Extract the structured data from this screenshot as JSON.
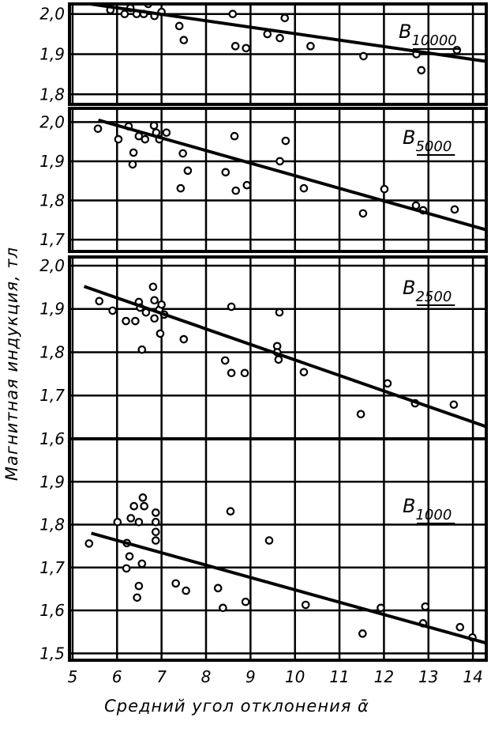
{
  "xlabel": "Средний угол отклонения ᾱ",
  "ylabel": "Магнитная индукция, тл",
  "chart_data": [
    {
      "type": "scatter",
      "label": "B",
      "label_sub": "10000",
      "xlim": [
        4.93,
        14.3
      ],
      "xticks": [
        5,
        6,
        7,
        8,
        9,
        10,
        11,
        12,
        13,
        14
      ],
      "ylim": [
        1.775,
        2.025
      ],
      "yticks": [
        {
          "value": 1.8,
          "label": "1,8"
        },
        {
          "value": 1.9,
          "label": "1,9"
        },
        {
          "value": 2.0,
          "label": "2,0"
        }
      ],
      "grid": true,
      "series": [
        {
          "color": "#000000",
          "x": [
            5.85,
            6.17,
            6.3,
            6.44,
            6.6,
            6.7,
            6.84,
            7.0,
            7.4,
            7.5,
            8.6,
            8.66,
            8.9,
            9.38,
            9.66,
            9.77,
            10.35,
            11.54,
            12.73,
            12.84,
            13.64
          ],
          "values": [
            2.01,
            2.0,
            2.015,
            2.0,
            2.0,
            2.025,
            1.995,
            2.005,
            1.97,
            1.935,
            2.0,
            1.92,
            1.915,
            1.95,
            1.94,
            1.99,
            1.92,
            1.895,
            1.9,
            1.86,
            1.91
          ]
        },
        {
          "type": "line",
          "color": "#000000",
          "x": [
            5.4,
            14.3
          ],
          "values": [
            2.025,
            1.882
          ]
        }
      ]
    },
    {
      "type": "scatter",
      "label": "B",
      "label_sub": "5000",
      "xlim": [
        4.93,
        14.3
      ],
      "xticks": [
        5,
        6,
        7,
        8,
        9,
        10,
        11,
        12,
        13,
        14
      ],
      "ylim": [
        1.67,
        2.035
      ],
      "yticks": [
        {
          "value": 1.7,
          "label": "1,7"
        },
        {
          "value": 1.8,
          "label": "1,8"
        },
        {
          "value": 1.9,
          "label": "1,9"
        },
        {
          "value": 2.0,
          "label": "2,0"
        }
      ],
      "grid": true,
      "series": [
        {
          "color": "#000000",
          "x": [
            5.57,
            6.03,
            6.26,
            6.37,
            6.35,
            6.49,
            6.63,
            6.83,
            6.88,
            6.95,
            7.11,
            7.48,
            7.59,
            7.43,
            8.44,
            8.64,
            8.67,
            8.92,
            9.66,
            9.79,
            10.2,
            11.53,
            12.01,
            12.72,
            12.88,
            13.59
          ],
          "values": [
            1.983,
            1.956,
            1.989,
            1.922,
            1.892,
            1.964,
            1.956,
            1.991,
            1.973,
            1.956,
            1.973,
            1.92,
            1.876,
            1.831,
            1.872,
            1.964,
            1.825,
            1.839,
            1.9,
            1.952,
            1.831,
            1.767,
            1.829,
            1.787,
            1.775,
            1.777
          ]
        },
        {
          "type": "line",
          "color": "#000000",
          "x": [
            5.58,
            14.3
          ],
          "values": [
            2.005,
            1.725
          ]
        }
      ]
    },
    {
      "type": "scatter",
      "label": "B",
      "label_sub": "2500",
      "xlim": [
        4.93,
        14.3
      ],
      "xticks": [
        5,
        6,
        7,
        8,
        9,
        10,
        11,
        12,
        13,
        14
      ],
      "ylim": [
        1.6,
        2.02
      ],
      "yticks": [
        {
          "value": 1.6,
          "label": "1,6"
        },
        {
          "value": 1.7,
          "label": "1,7"
        },
        {
          "value": 1.8,
          "label": "1,8"
        },
        {
          "value": 1.9,
          "label": "1,9"
        },
        {
          "value": 2.0,
          "label": "2,0"
        }
      ],
      "grid": true,
      "series": [
        {
          "color": "#000000",
          "x": [
            5.6,
            5.9,
            6.2,
            6.41,
            6.49,
            6.52,
            6.65,
            6.56,
            6.81,
            6.84,
            6.84,
            6.95,
            7.0,
            7.06,
            6.97,
            7.5,
            8.43,
            8.57,
            8.87,
            8.57,
            9.65,
            9.6,
            9.6,
            9.63,
            10.2,
            11.48,
            12.08,
            12.7,
            13.57
          ],
          "values": [
            1.918,
            1.896,
            1.872,
            1.872,
            1.916,
            1.903,
            1.892,
            1.806,
            1.951,
            1.92,
            1.878,
            1.898,
            1.91,
            1.887,
            1.843,
            1.83,
            1.781,
            1.752,
            1.752,
            1.905,
            1.892,
            1.814,
            1.8,
            1.783,
            1.754,
            1.657,
            1.728,
            1.682,
            1.679
          ]
        },
        {
          "type": "line",
          "color": "#000000",
          "x": [
            5.26,
            14.3
          ],
          "values": [
            1.952,
            1.628
          ]
        }
      ]
    },
    {
      "type": "scatter",
      "label": "B",
      "label_sub": "1000",
      "xlim": [
        4.93,
        14.3
      ],
      "xticks": [
        5,
        6,
        7,
        8,
        9,
        10,
        11,
        12,
        13,
        14
      ],
      "ylim": [
        1.484,
        2.0
      ],
      "yticks": [
        {
          "value": 1.5,
          "label": "1,5"
        },
        {
          "value": 1.6,
          "label": "1,6"
        },
        {
          "value": 1.7,
          "label": "1,7"
        },
        {
          "value": 1.8,
          "label": "1,8"
        },
        {
          "value": 1.9,
          "label": "1,9"
        }
      ],
      "grid": true,
      "series": [
        {
          "color": "#000000",
          "x": [
            5.37,
            6.01,
            6.22,
            6.28,
            6.21,
            6.31,
            6.38,
            6.49,
            6.58,
            6.61,
            6.49,
            6.45,
            6.56,
            6.87,
            6.87,
            6.87,
            6.87,
            7.32,
            7.55,
            8.27,
            8.38,
            8.55,
            8.89,
            9.42,
            10.24,
            11.52,
            11.93,
            12.93,
            12.88,
            13.71,
            13.99
          ],
          "values": [
            1.756,
            1.806,
            1.757,
            1.726,
            1.698,
            1.815,
            1.843,
            1.806,
            1.863,
            1.843,
            1.657,
            1.63,
            1.709,
            1.828,
            1.806,
            1.783,
            1.763,
            1.663,
            1.646,
            1.652,
            1.606,
            1.831,
            1.62,
            1.763,
            1.613,
            1.546,
            1.606,
            1.609,
            1.57,
            1.561,
            1.537
          ]
        },
        {
          "type": "line",
          "color": "#000000",
          "x": [
            5.42,
            14.3
          ],
          "values": [
            1.78,
            1.524
          ]
        }
      ]
    }
  ]
}
